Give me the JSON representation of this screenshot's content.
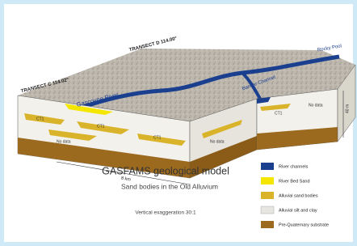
{
  "title": "GASFAMS geological model",
  "subtitle": "Sand bodies in the Old Alluvium",
  "note": "Vertical exaggeration 30:1",
  "transects": [
    "TRANSECT D 114.00°",
    "TRANSECT C 114.02°"
  ],
  "rivers": [
    "Gascoyne River",
    "Rocky Pool",
    "Bandar Channel"
  ],
  "face_labels": [
    "CT1",
    "CT1",
    "CT1",
    "No data",
    "No data",
    "No data",
    "CT1"
  ],
  "scale": {
    "horizontal": "8 km",
    "vertical": "40 m"
  },
  "legend": [
    "River channels",
    "River Bed Sand",
    "Alluvial sand bodies",
    "Alluvial silt and clay",
    "Pre-Quaternary substrate"
  ]
}
